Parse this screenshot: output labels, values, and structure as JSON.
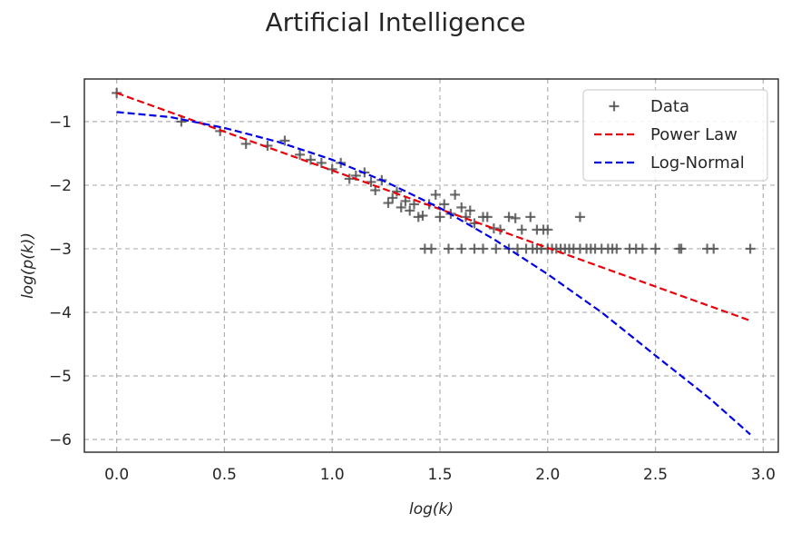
{
  "chart_data": {
    "type": "scatter",
    "title": "Artificial Intelligence",
    "xlabel": "log(k)",
    "ylabel": "log(p(k))",
    "xlim": [
      -0.15,
      3.07
    ],
    "ylim": [
      -6.2,
      -0.33
    ],
    "xticks": [
      0.0,
      0.5,
      1.0,
      1.5,
      2.0,
      2.5,
      3.0
    ],
    "xtick_labels": [
      "0.0",
      "0.5",
      "1.0",
      "1.5",
      "2.0",
      "2.5",
      "3.0"
    ],
    "yticks": [
      -1,
      -2,
      -3,
      -4,
      -5,
      -6
    ],
    "ytick_labels": [
      "−1",
      "−2",
      "−3",
      "−4",
      "−5",
      "−6"
    ],
    "grid": true,
    "legend_position": "top-right",
    "series": [
      {
        "name": "Data",
        "kind": "scatter",
        "marker": "+",
        "color": "#555555",
        "points": [
          [
            0.0,
            -0.55
          ],
          [
            0.3,
            -1.0
          ],
          [
            0.48,
            -1.15
          ],
          [
            0.6,
            -1.35
          ],
          [
            0.7,
            -1.38
          ],
          [
            0.78,
            -1.3
          ],
          [
            0.85,
            -1.52
          ],
          [
            0.9,
            -1.6
          ],
          [
            0.95,
            -1.65
          ],
          [
            1.0,
            -1.75
          ],
          [
            1.04,
            -1.65
          ],
          [
            1.08,
            -1.9
          ],
          [
            1.11,
            -1.85
          ],
          [
            1.15,
            -1.8
          ],
          [
            1.18,
            -1.95
          ],
          [
            1.2,
            -2.08
          ],
          [
            1.23,
            -1.92
          ],
          [
            1.26,
            -2.28
          ],
          [
            1.28,
            -2.2
          ],
          [
            1.3,
            -2.1
          ],
          [
            1.32,
            -2.35
          ],
          [
            1.34,
            -2.25
          ],
          [
            1.36,
            -2.4
          ],
          [
            1.38,
            -2.3
          ],
          [
            1.4,
            -2.5
          ],
          [
            1.42,
            -2.48
          ],
          [
            1.45,
            -2.3
          ],
          [
            1.48,
            -2.15
          ],
          [
            1.5,
            -2.5
          ],
          [
            1.52,
            -2.3
          ],
          [
            1.55,
            -2.45
          ],
          [
            1.57,
            -2.15
          ],
          [
            1.6,
            -2.35
          ],
          [
            1.62,
            -2.5
          ],
          [
            1.64,
            -2.4
          ],
          [
            1.66,
            -2.6
          ],
          [
            1.7,
            -2.5
          ],
          [
            1.72,
            -2.5
          ],
          [
            1.75,
            -2.68
          ],
          [
            1.78,
            -2.7
          ],
          [
            1.82,
            -2.5
          ],
          [
            1.85,
            -2.52
          ],
          [
            1.88,
            -2.7
          ],
          [
            1.92,
            -2.5
          ],
          [
            1.95,
            -2.7
          ],
          [
            1.98,
            -2.7
          ],
          [
            2.0,
            -2.7
          ],
          [
            2.15,
            -2.5
          ],
          [
            1.43,
            -3.0
          ],
          [
            1.46,
            -3.0
          ],
          [
            1.54,
            -3.0
          ],
          [
            1.6,
            -3.0
          ],
          [
            1.66,
            -3.0
          ],
          [
            1.7,
            -3.0
          ],
          [
            1.76,
            -3.0
          ],
          [
            1.82,
            -3.0
          ],
          [
            1.86,
            -3.0
          ],
          [
            1.9,
            -3.0
          ],
          [
            1.93,
            -3.0
          ],
          [
            1.95,
            -3.0
          ],
          [
            1.97,
            -3.0
          ],
          [
            2.0,
            -3.0
          ],
          [
            2.02,
            -3.0
          ],
          [
            2.04,
            -3.0
          ],
          [
            2.06,
            -3.0
          ],
          [
            2.08,
            -3.0
          ],
          [
            2.1,
            -3.0
          ],
          [
            2.12,
            -3.0
          ],
          [
            2.15,
            -3.0
          ],
          [
            2.18,
            -3.0
          ],
          [
            2.2,
            -3.0
          ],
          [
            2.22,
            -3.0
          ],
          [
            2.25,
            -3.0
          ],
          [
            2.28,
            -3.0
          ],
          [
            2.3,
            -3.0
          ],
          [
            2.32,
            -3.0
          ],
          [
            2.38,
            -3.0
          ],
          [
            2.41,
            -3.0
          ],
          [
            2.44,
            -3.0
          ],
          [
            2.5,
            -3.0
          ],
          [
            2.61,
            -3.0
          ],
          [
            2.62,
            -3.0
          ],
          [
            2.74,
            -3.0
          ],
          [
            2.77,
            -3.0
          ],
          [
            2.94,
            -3.0
          ]
        ]
      },
      {
        "name": "Power Law",
        "kind": "line",
        "style": "dashed",
        "color": "#e8000b",
        "points": [
          [
            0.0,
            -0.55
          ],
          [
            2.94,
            -4.13
          ]
        ]
      },
      {
        "name": "Log-Normal",
        "kind": "line",
        "style": "dashed",
        "color": "#0000e6",
        "points": [
          [
            0.0,
            -0.85
          ],
          [
            0.25,
            -0.93
          ],
          [
            0.5,
            -1.1
          ],
          [
            0.75,
            -1.32
          ],
          [
            1.0,
            -1.6
          ],
          [
            1.25,
            -1.95
          ],
          [
            1.5,
            -2.36
          ],
          [
            1.75,
            -2.85
          ],
          [
            2.0,
            -3.4
          ],
          [
            2.25,
            -4.0
          ],
          [
            2.5,
            -4.68
          ],
          [
            2.75,
            -5.35
          ],
          [
            2.94,
            -5.92
          ]
        ]
      }
    ]
  }
}
